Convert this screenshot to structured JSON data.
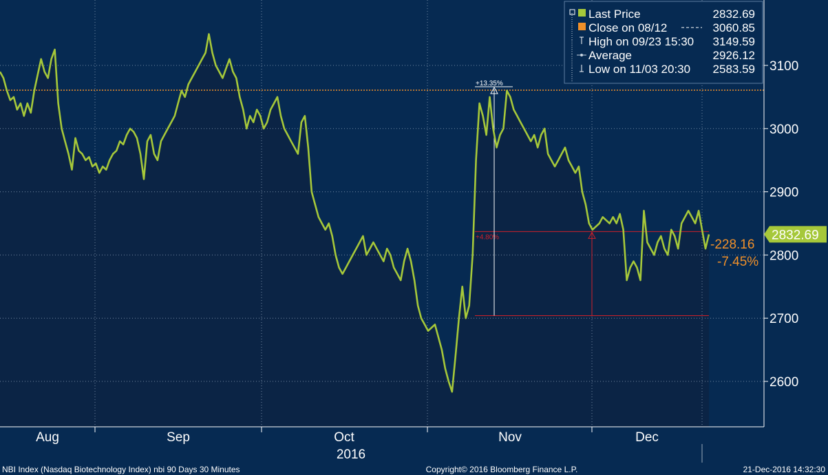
{
  "chart_data": {
    "type": "line",
    "title": "",
    "xlabel": "",
    "ylabel": "",
    "ylim": [
      2520,
      3200
    ],
    "y_ticks": [
      2600,
      2700,
      2800,
      2900,
      3000,
      3100
    ],
    "x_month_labels": [
      "Aug",
      "Sep",
      "Oct",
      "Nov",
      "Dec"
    ],
    "year_label": "2016",
    "grid": "dotted",
    "legend_placement": "top-right",
    "colors": {
      "background": "#062a52",
      "area_fill": "#0c2444",
      "line": "#a6c83a",
      "close_line": "#f0902a",
      "range_line": "#d0202a",
      "high_marker": "#ffffff",
      "change_text": "#f0902a",
      "last_price_box": "#a6c83a"
    },
    "series": [
      {
        "name": "Last Price",
        "values": [
          3090,
          3080,
          3060,
          3045,
          3050,
          3030,
          3040,
          3020,
          3040,
          3025,
          3060,
          3085,
          3110,
          3090,
          3080,
          3110,
          3125,
          3040,
          3000,
          2980,
          2960,
          2935,
          2985,
          2965,
          2960,
          2950,
          2955,
          2940,
          2945,
          2930,
          2940,
          2935,
          2950,
          2960,
          2965,
          2980,
          2975,
          2990,
          3000,
          2995,
          2985,
          2960,
          2920,
          2980,
          2990,
          2960,
          2950,
          2980,
          2990,
          3000,
          3010,
          3020,
          3040,
          3060,
          3050,
          3070,
          3080,
          3090,
          3100,
          3110,
          3120,
          3149.59,
          3120,
          3100,
          3090,
          3080,
          3095,
          3110,
          3090,
          3080,
          3050,
          3030,
          3000,
          3020,
          3010,
          3030,
          3020,
          3000,
          3010,
          3030,
          3040,
          3050,
          3020,
          3000,
          2990,
          2980,
          2970,
          2960,
          3010,
          3020,
          2970,
          2900,
          2880,
          2860,
          2850,
          2840,
          2850,
          2830,
          2800,
          2780,
          2770,
          2780,
          2790,
          2800,
          2810,
          2820,
          2830,
          2800,
          2810,
          2820,
          2810,
          2800,
          2790,
          2810,
          2800,
          2780,
          2770,
          2760,
          2790,
          2810,
          2790,
          2760,
          2720,
          2700,
          2690,
          2680,
          2685,
          2690,
          2670,
          2650,
          2620,
          2600,
          2583.59,
          2640,
          2700,
          2750,
          2700,
          2720,
          2800,
          2950,
          3040,
          3020,
          2990,
          3050,
          3000,
          2970,
          2990,
          3000,
          3060,
          3050,
          3030,
          3020,
          3010,
          3000,
          2990,
          2980,
          2990,
          2970,
          2990,
          3000,
          2960,
          2950,
          2940,
          2950,
          2960,
          2970,
          2950,
          2940,
          2930,
          2940,
          2900,
          2880,
          2850,
          2840,
          2845,
          2850,
          2860,
          2855,
          2850,
          2860,
          2850,
          2865,
          2840,
          2760,
          2780,
          2790,
          2780,
          2760,
          2870,
          2820,
          2810,
          2800,
          2820,
          2830,
          2810,
          2800,
          2840,
          2830,
          2810,
          2850,
          2860,
          2870,
          2860,
          2850,
          2870,
          2840,
          2810,
          2832.69
        ]
      }
    ],
    "legend": [
      {
        "symbol": "square-green",
        "label": "Last Price",
        "value": "2832.69"
      },
      {
        "symbol": "square-orange",
        "label": "Close on 08/12",
        "value": "3060.85"
      },
      {
        "symbol": "high-marker",
        "label": "High on 09/23 15:30",
        "value": "3149.59"
      },
      {
        "symbol": "average-marker",
        "label": "Average",
        "value": "2926.12"
      },
      {
        "symbol": "low-marker",
        "label": "Low on 11/03 20:30",
        "value": "2583.59"
      }
    ],
    "close_level": 3060.85,
    "range_low": 2704,
    "range_high": 2837,
    "annotations": {
      "up_pct": "+13.35%",
      "mid_pct": "+4.80%",
      "change_abs": "-228.16",
      "change_pct": "-7.45%",
      "last_price_label": "2832.69"
    }
  },
  "footer": {
    "left": "NBI Index (Nasdaq Biotechnology Index) nbi 90 Days 30 Minutes",
    "center": "Copyright© 2016 Bloomberg Finance L.P.",
    "right": "21-Dec-2016 14:32:30"
  }
}
